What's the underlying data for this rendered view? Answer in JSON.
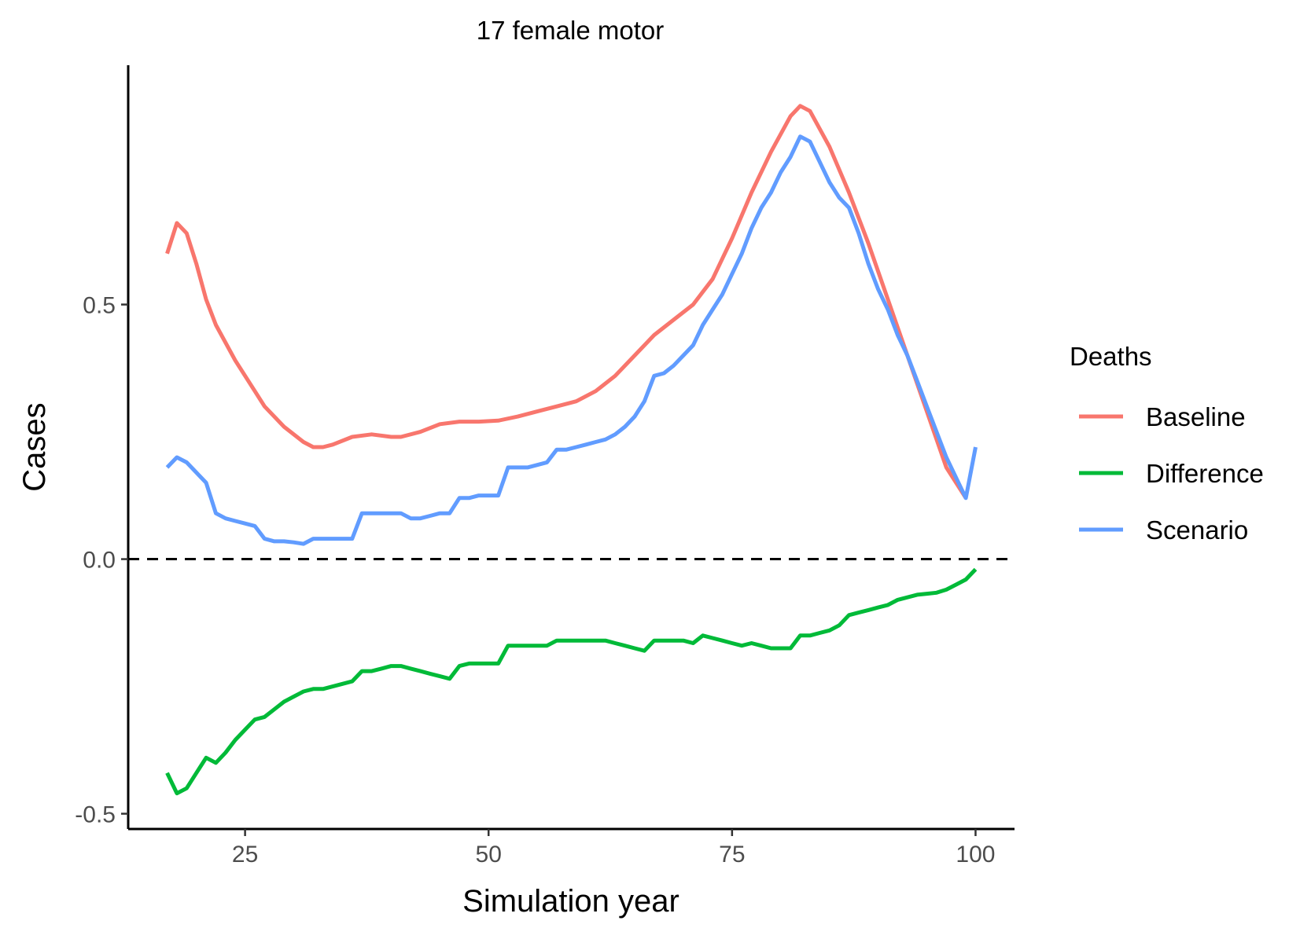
{
  "chart_data": {
    "type": "line",
    "title": "17 female motor",
    "xlabel": "Simulation year",
    "ylabel": "Cases",
    "xlim": [
      13,
      104
    ],
    "ylim": [
      -0.53,
      0.97
    ],
    "x_ticks": [
      25,
      50,
      75,
      100
    ],
    "x_tick_labels": [
      "25",
      "50",
      "75",
      "100"
    ],
    "y_ticks": [
      -0.5,
      0.0,
      0.5
    ],
    "y_tick_labels": [
      "-0.5",
      "0.0",
      "0.5"
    ],
    "grid": false,
    "reference_line": {
      "y": 0.0,
      "style": "dashed"
    },
    "legend": {
      "title": "Deaths",
      "position": "right"
    },
    "series": [
      {
        "name": "Baseline",
        "color": "#F8766D",
        "x": [
          17,
          18,
          19,
          20,
          21,
          22,
          24,
          26,
          27,
          29,
          31,
          32,
          33,
          34,
          36,
          38,
          40,
          41,
          43,
          45,
          47,
          49,
          51,
          53,
          55,
          57,
          59,
          61,
          63,
          65,
          67,
          69,
          71,
          73,
          75,
          77,
          79,
          81,
          82,
          83,
          85,
          87,
          89,
          91,
          93,
          95,
          97,
          99
        ],
        "y": [
          0.6,
          0.66,
          0.64,
          0.58,
          0.51,
          0.46,
          0.39,
          0.33,
          0.3,
          0.26,
          0.23,
          0.22,
          0.22,
          0.225,
          0.24,
          0.245,
          0.24,
          0.24,
          0.25,
          0.265,
          0.27,
          0.27,
          0.272,
          0.28,
          0.29,
          0.3,
          0.31,
          0.33,
          0.36,
          0.4,
          0.44,
          0.47,
          0.5,
          0.55,
          0.63,
          0.72,
          0.8,
          0.87,
          0.89,
          0.88,
          0.81,
          0.72,
          0.62,
          0.51,
          0.4,
          0.29,
          0.18,
          0.12
        ]
      },
      {
        "name": "Difference",
        "color": "#00BA38",
        "x": [
          17,
          18,
          19,
          20,
          21,
          22,
          23,
          24,
          25,
          26,
          27,
          28,
          29,
          30,
          31,
          32,
          33,
          34,
          35,
          36,
          37,
          38,
          39,
          40,
          41,
          42,
          43,
          44,
          45,
          46,
          47,
          48,
          49,
          50,
          51,
          52,
          53,
          54,
          55,
          56,
          57,
          58,
          59,
          60,
          61,
          62,
          63,
          64,
          65,
          66,
          67,
          68,
          69,
          70,
          71,
          72,
          73,
          74,
          75,
          76,
          77,
          78,
          79,
          80,
          81,
          82,
          83,
          84,
          85,
          86,
          87,
          88,
          89,
          90,
          91,
          92,
          93,
          94,
          95,
          96,
          97,
          98,
          99,
          100
        ],
        "y": [
          -0.42,
          -0.46,
          -0.45,
          -0.42,
          -0.39,
          -0.4,
          -0.38,
          -0.355,
          -0.335,
          -0.315,
          -0.31,
          -0.295,
          -0.28,
          -0.27,
          -0.26,
          -0.255,
          -0.255,
          -0.25,
          -0.245,
          -0.24,
          -0.22,
          -0.22,
          -0.215,
          -0.21,
          -0.21,
          -0.215,
          -0.22,
          -0.225,
          -0.23,
          -0.235,
          -0.21,
          -0.205,
          -0.205,
          -0.205,
          -0.205,
          -0.17,
          -0.17,
          -0.17,
          -0.17,
          -0.17,
          -0.16,
          -0.16,
          -0.16,
          -0.16,
          -0.16,
          -0.16,
          -0.165,
          -0.17,
          -0.175,
          -0.18,
          -0.16,
          -0.16,
          -0.16,
          -0.16,
          -0.165,
          -0.15,
          -0.155,
          -0.16,
          -0.165,
          -0.17,
          -0.165,
          -0.17,
          -0.175,
          -0.175,
          -0.175,
          -0.15,
          -0.15,
          -0.145,
          -0.14,
          -0.13,
          -0.11,
          -0.105,
          -0.1,
          -0.095,
          -0.09,
          -0.08,
          -0.075,
          -0.07,
          -0.068,
          -0.066,
          -0.06,
          -0.05,
          -0.04,
          -0.02
        ]
      },
      {
        "name": "Scenario",
        "color": "#619CFF",
        "x": [
          17,
          18,
          19,
          20,
          21,
          22,
          23,
          24,
          25,
          26,
          27,
          28,
          29,
          30,
          31,
          32,
          33,
          34,
          35,
          36,
          37,
          38,
          39,
          40,
          41,
          42,
          43,
          44,
          45,
          46,
          47,
          48,
          49,
          50,
          51,
          52,
          53,
          54,
          55,
          56,
          57,
          58,
          59,
          60,
          61,
          62,
          63,
          64,
          65,
          66,
          67,
          68,
          69,
          70,
          71,
          72,
          73,
          74,
          75,
          76,
          77,
          78,
          79,
          80,
          81,
          82,
          83,
          84,
          85,
          86,
          87,
          88,
          89,
          90,
          91,
          92,
          93,
          94,
          95,
          96,
          97,
          98,
          99,
          100
        ],
        "y": [
          0.18,
          0.2,
          0.19,
          0.17,
          0.15,
          0.09,
          0.08,
          0.075,
          0.07,
          0.065,
          0.04,
          0.035,
          0.035,
          0.033,
          0.03,
          0.04,
          0.04,
          0.04,
          0.04,
          0.04,
          0.09,
          0.09,
          0.09,
          0.09,
          0.09,
          0.08,
          0.08,
          0.085,
          0.09,
          0.09,
          0.12,
          0.12,
          0.125,
          0.125,
          0.125,
          0.18,
          0.18,
          0.18,
          0.185,
          0.19,
          0.215,
          0.215,
          0.22,
          0.225,
          0.23,
          0.235,
          0.245,
          0.26,
          0.28,
          0.31,
          0.36,
          0.365,
          0.38,
          0.4,
          0.42,
          0.46,
          0.49,
          0.52,
          0.56,
          0.6,
          0.65,
          0.69,
          0.72,
          0.76,
          0.79,
          0.83,
          0.82,
          0.78,
          0.74,
          0.71,
          0.69,
          0.64,
          0.58,
          0.53,
          0.49,
          0.44,
          0.4,
          0.35,
          0.3,
          0.25,
          0.2,
          0.16,
          0.12,
          0.22
        ]
      }
    ]
  }
}
